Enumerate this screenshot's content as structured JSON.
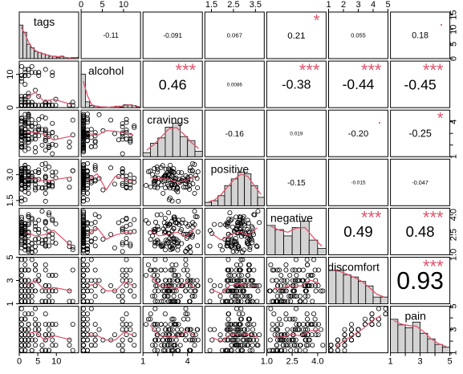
{
  "chart_data": {
    "type": "scatter",
    "plot_kind": "pairs-correlation-matrix",
    "variables": [
      "tags",
      "alcohol",
      "cravings",
      "positive",
      "negative",
      "discomfort",
      "pain"
    ],
    "colors": {
      "smooth": "#DF536B",
      "stars": "#DF536B",
      "hist_fill": "#D3D3D3",
      "points": "#000000"
    },
    "axes": {
      "top": [
        {
          "column": 1,
          "ticks": [
            "0",
            "5",
            "10"
          ],
          "values": [
            0,
            5,
            10
          ]
        },
        {
          "column": 3,
          "ticks": [
            "1.5",
            "2.5",
            "3.5"
          ],
          "values": [
            1.5,
            2.5,
            3.5
          ]
        },
        {
          "column": 5,
          "ticks": [
            "1",
            "2",
            "3",
            "4",
            "5"
          ],
          "values": [
            1,
            2,
            3,
            4,
            5
          ]
        }
      ],
      "bottom": [
        {
          "column": 0,
          "ticks": [
            "0",
            "5",
            "10"
          ],
          "values": [
            0,
            5,
            10
          ]
        },
        {
          "column": 2,
          "ticks": [
            "1",
            "",
            "",
            "4"
          ],
          "values": [
            1,
            2,
            3,
            4
          ]
        },
        {
          "column": 4,
          "ticks": [
            "1.0",
            "2.5",
            "4.0"
          ],
          "values": [
            1.0,
            2.5,
            4.0
          ]
        },
        {
          "column": 6,
          "ticks": [
            "1",
            "",
            "3",
            "",
            "5"
          ],
          "values": [
            1,
            2,
            3,
            4,
            5
          ]
        }
      ],
      "left": [
        {
          "row": 1,
          "ticks": [
            "0",
            "10"
          ],
          "values": [
            0,
            10
          ]
        },
        {
          "row": 3,
          "ticks": [
            "1.5",
            "3.0"
          ],
          "values": [
            1.5,
            3.0
          ]
        },
        {
          "row": 5,
          "ticks": [
            "1",
            "3",
            "5"
          ],
          "values": [
            1,
            3,
            5
          ]
        }
      ],
      "right": [
        {
          "row": 0,
          "ticks": [
            "0",
            "5",
            "10",
            "15"
          ],
          "values": [
            0,
            5,
            10,
            15
          ]
        },
        {
          "row": 2,
          "ticks": [
            "1",
            "",
            "",
            "4"
          ],
          "values": [
            1,
            2,
            3,
            4
          ]
        },
        {
          "row": 4,
          "ticks": [
            "1.0",
            "2.5",
            "4.0"
          ],
          "values": [
            1.0,
            2.5,
            4.0
          ]
        },
        {
          "row": 6,
          "ticks": [
            "1",
            "",
            "3",
            "",
            "5"
          ],
          "values": [
            1,
            2,
            3,
            4,
            5
          ]
        }
      ]
    },
    "correlations": [
      {
        "row": 0,
        "col": 1,
        "r": "-0.11",
        "stars": ""
      },
      {
        "row": 0,
        "col": 2,
        "r": "-0.091",
        "stars": ""
      },
      {
        "row": 0,
        "col": 3,
        "r": "0.067",
        "stars": ""
      },
      {
        "row": 0,
        "col": 4,
        "r": "0.21",
        "stars": "*"
      },
      {
        "row": 0,
        "col": 5,
        "r": "0.055",
        "stars": ""
      },
      {
        "row": 0,
        "col": 6,
        "r": "0.18",
        "stars": "."
      },
      {
        "row": 1,
        "col": 2,
        "r": "0.46",
        "stars": "***"
      },
      {
        "row": 1,
        "col": 3,
        "r": "0.0086",
        "stars": ""
      },
      {
        "row": 1,
        "col": 4,
        "r": "-0.38",
        "stars": "***"
      },
      {
        "row": 1,
        "col": 5,
        "r": "-0.44",
        "stars": "***"
      },
      {
        "row": 1,
        "col": 6,
        "r": "-0.45",
        "stars": "***"
      },
      {
        "row": 2,
        "col": 3,
        "r": "-0.16",
        "stars": ""
      },
      {
        "row": 2,
        "col": 4,
        "r": "0.019",
        "stars": ""
      },
      {
        "row": 2,
        "col": 5,
        "r": "-0.20",
        "stars": "."
      },
      {
        "row": 2,
        "col": 6,
        "r": "-0.25",
        "stars": "*"
      },
      {
        "row": 3,
        "col": 4,
        "r": "-0.15",
        "stars": ""
      },
      {
        "row": 3,
        "col": 5,
        "r": "-0.015",
        "stars": ""
      },
      {
        "row": 3,
        "col": 6,
        "r": "-0.047",
        "stars": ""
      },
      {
        "row": 4,
        "col": 5,
        "r": "0.49",
        "stars": "***"
      },
      {
        "row": 4,
        "col": 6,
        "r": "0.48",
        "stars": "***"
      },
      {
        "row": 5,
        "col": 6,
        "r": "0.93",
        "stars": "***"
      }
    ],
    "histograms": [
      {
        "variable": "tags",
        "breaks": [
          0,
          1,
          2,
          3,
          4,
          5,
          6,
          7,
          8,
          9,
          10,
          11,
          12,
          13,
          14,
          15,
          16
        ],
        "counts": [
          28,
          22,
          12,
          9,
          6,
          5,
          4,
          3,
          2,
          2,
          1,
          2,
          1,
          0,
          1,
          1
        ]
      },
      {
        "variable": "alcohol",
        "breaks": [
          0,
          1,
          2,
          3,
          4,
          5,
          6,
          7,
          8,
          9,
          10,
          11,
          12,
          13,
          14
        ],
        "counts": [
          46,
          8,
          3,
          2,
          1,
          1,
          0,
          1,
          2,
          1,
          4,
          4,
          3,
          1
        ]
      },
      {
        "variable": "cravings",
        "breaks": [
          1,
          1.5,
          2,
          2.5,
          3,
          3.5,
          4,
          4.5,
          5
        ],
        "counts": [
          3,
          10,
          14,
          22,
          25,
          15,
          12,
          4
        ]
      },
      {
        "variable": "positive",
        "breaks": [
          1.2,
          1.5,
          1.8,
          2.1,
          2.4,
          2.7,
          3,
          3.3,
          3.6,
          3.9
        ],
        "counts": [
          2,
          3,
          6,
          12,
          16,
          20,
          19,
          12,
          5
        ]
      },
      {
        "variable": "negative",
        "breaks": [
          1,
          1.5,
          2,
          2.5,
          3,
          3.5,
          4,
          4.5
        ],
        "counts": [
          14,
          12,
          9,
          13,
          16,
          7,
          3
        ]
      },
      {
        "variable": "discomfort",
        "breaks": [
          1,
          1.5,
          2,
          2.5,
          3,
          3.5,
          4,
          4.5,
          5
        ],
        "counts": [
          15,
          15,
          13,
          12,
          10,
          8,
          3,
          3
        ]
      },
      {
        "variable": "pain",
        "breaks": [
          1,
          1.5,
          2,
          2.5,
          3,
          3.5,
          4,
          4.5,
          5
        ],
        "counts": [
          12,
          10,
          9,
          11,
          7,
          5,
          3,
          2
        ]
      }
    ]
  }
}
